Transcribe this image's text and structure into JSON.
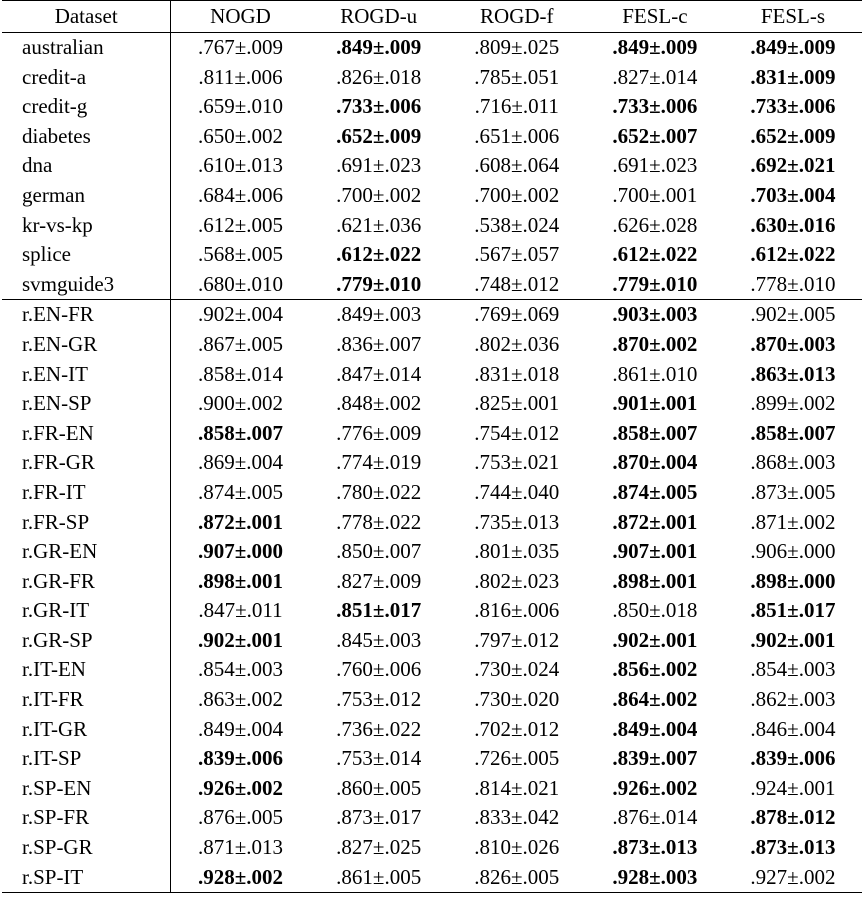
{
  "table": {
    "headers": [
      "Dataset",
      "NOGD",
      "ROGD-u",
      "ROGD-f",
      "FESL-c",
      "FESL-s"
    ],
    "groups": [
      {
        "rows": [
          {
            "dataset": "australian",
            "cells": [
              {
                "v": ".767±.009",
                "b": false
              },
              {
                "v": ".849±.009",
                "b": true
              },
              {
                "v": ".809±.025",
                "b": false
              },
              {
                "v": ".849±.009",
                "b": true
              },
              {
                "v": ".849±.009",
                "b": true
              }
            ]
          },
          {
            "dataset": "credit-a",
            "cells": [
              {
                "v": ".811±.006",
                "b": false
              },
              {
                "v": ".826±.018",
                "b": false
              },
              {
                "v": ".785±.051",
                "b": false
              },
              {
                "v": ".827±.014",
                "b": false
              },
              {
                "v": ".831±.009",
                "b": true
              }
            ]
          },
          {
            "dataset": "credit-g",
            "cells": [
              {
                "v": ".659±.010",
                "b": false
              },
              {
                "v": ".733±.006",
                "b": true
              },
              {
                "v": ".716±.011",
                "b": false
              },
              {
                "v": ".733±.006",
                "b": true
              },
              {
                "v": ".733±.006",
                "b": true
              }
            ]
          },
          {
            "dataset": "diabetes",
            "cells": [
              {
                "v": ".650±.002",
                "b": false
              },
              {
                "v": ".652±.009",
                "b": true
              },
              {
                "v": ".651±.006",
                "b": false
              },
              {
                "v": ".652±.007",
                "b": true
              },
              {
                "v": ".652±.009",
                "b": true
              }
            ]
          },
          {
            "dataset": "dna",
            "cells": [
              {
                "v": ".610±.013",
                "b": false
              },
              {
                "v": ".691±.023",
                "b": false
              },
              {
                "v": ".608±.064",
                "b": false
              },
              {
                "v": ".691±.023",
                "b": false
              },
              {
                "v": ".692±.021",
                "b": true
              }
            ]
          },
          {
            "dataset": "german",
            "cells": [
              {
                "v": ".684±.006",
                "b": false
              },
              {
                "v": ".700±.002",
                "b": false
              },
              {
                "v": ".700±.002",
                "b": false
              },
              {
                "v": ".700±.001",
                "b": false
              },
              {
                "v": ".703±.004",
                "b": true
              }
            ]
          },
          {
            "dataset": "kr-vs-kp",
            "cells": [
              {
                "v": ".612±.005",
                "b": false
              },
              {
                "v": ".621±.036",
                "b": false
              },
              {
                "v": ".538±.024",
                "b": false
              },
              {
                "v": ".626±.028",
                "b": false
              },
              {
                "v": ".630±.016",
                "b": true
              }
            ]
          },
          {
            "dataset": "splice",
            "cells": [
              {
                "v": ".568±.005",
                "b": false
              },
              {
                "v": ".612±.022",
                "b": true
              },
              {
                "v": ".567±.057",
                "b": false
              },
              {
                "v": ".612±.022",
                "b": true
              },
              {
                "v": ".612±.022",
                "b": true
              }
            ]
          },
          {
            "dataset": "svmguide3",
            "cells": [
              {
                "v": ".680±.010",
                "b": false
              },
              {
                "v": ".779±.010",
                "b": true
              },
              {
                "v": ".748±.012",
                "b": false
              },
              {
                "v": ".779±.010",
                "b": true
              },
              {
                "v": ".778±.010",
                "b": false
              }
            ]
          }
        ]
      },
      {
        "rows": [
          {
            "dataset": "r.EN-FR",
            "cells": [
              {
                "v": ".902±.004",
                "b": false
              },
              {
                "v": ".849±.003",
                "b": false
              },
              {
                "v": ".769±.069",
                "b": false
              },
              {
                "v": ".903±.003",
                "b": true
              },
              {
                "v": ".902±.005",
                "b": false
              }
            ]
          },
          {
            "dataset": "r.EN-GR",
            "cells": [
              {
                "v": ".867±.005",
                "b": false
              },
              {
                "v": ".836±.007",
                "b": false
              },
              {
                "v": ".802±.036",
                "b": false
              },
              {
                "v": ".870±.002",
                "b": true
              },
              {
                "v": ".870±.003",
                "b": true
              }
            ]
          },
          {
            "dataset": "r.EN-IT",
            "cells": [
              {
                "v": ".858±.014",
                "b": false
              },
              {
                "v": ".847±.014",
                "b": false
              },
              {
                "v": ".831±.018",
                "b": false
              },
              {
                "v": ".861±.010",
                "b": false
              },
              {
                "v": ".863±.013",
                "b": true
              }
            ]
          },
          {
            "dataset": "r.EN-SP",
            "cells": [
              {
                "v": ".900±.002",
                "b": false
              },
              {
                "v": ".848±.002",
                "b": false
              },
              {
                "v": ".825±.001",
                "b": false
              },
              {
                "v": ".901±.001",
                "b": true
              },
              {
                "v": ".899±.002",
                "b": false
              }
            ]
          },
          {
            "dataset": "r.FR-EN",
            "cells": [
              {
                "v": ".858±.007",
                "b": true
              },
              {
                "v": ".776±.009",
                "b": false
              },
              {
                "v": ".754±.012",
                "b": false
              },
              {
                "v": ".858±.007",
                "b": true
              },
              {
                "v": ".858±.007",
                "b": true
              }
            ]
          },
          {
            "dataset": "r.FR-GR",
            "cells": [
              {
                "v": ".869±.004",
                "b": false
              },
              {
                "v": ".774±.019",
                "b": false
              },
              {
                "v": ".753±.021",
                "b": false
              },
              {
                "v": ".870±.004",
                "b": true
              },
              {
                "v": ".868±.003",
                "b": false
              }
            ]
          },
          {
            "dataset": "r.FR-IT",
            "cells": [
              {
                "v": ".874±.005",
                "b": false
              },
              {
                "v": ".780±.022",
                "b": false
              },
              {
                "v": ".744±.040",
                "b": false
              },
              {
                "v": ".874±.005",
                "b": true
              },
              {
                "v": ".873±.005",
                "b": false
              }
            ]
          },
          {
            "dataset": "r.FR-SP",
            "cells": [
              {
                "v": ".872±.001",
                "b": true
              },
              {
                "v": ".778±.022",
                "b": false
              },
              {
                "v": ".735±.013",
                "b": false
              },
              {
                "v": ".872±.001",
                "b": true
              },
              {
                "v": ".871±.002",
                "b": false
              }
            ]
          },
          {
            "dataset": "r.GR-EN",
            "cells": [
              {
                "v": ".907±.000",
                "b": true
              },
              {
                "v": ".850±.007",
                "b": false
              },
              {
                "v": ".801±.035",
                "b": false
              },
              {
                "v": ".907±.001",
                "b": true
              },
              {
                "v": ".906±.000",
                "b": false
              }
            ]
          },
          {
            "dataset": "r.GR-FR",
            "cells": [
              {
                "v": ".898±.001",
                "b": true
              },
              {
                "v": ".827±.009",
                "b": false
              },
              {
                "v": ".802±.023",
                "b": false
              },
              {
                "v": ".898±.001",
                "b": true
              },
              {
                "v": ".898±.000",
                "b": true
              }
            ]
          },
          {
            "dataset": "r.GR-IT",
            "cells": [
              {
                "v": ".847±.011",
                "b": false
              },
              {
                "v": ".851±.017",
                "b": true
              },
              {
                "v": ".816±.006",
                "b": false
              },
              {
                "v": ".850±.018",
                "b": false
              },
              {
                "v": ".851±.017",
                "b": true
              }
            ]
          },
          {
            "dataset": "r.GR-SP",
            "cells": [
              {
                "v": ".902±.001",
                "b": true
              },
              {
                "v": ".845±.003",
                "b": false
              },
              {
                "v": ".797±.012",
                "b": false
              },
              {
                "v": ".902±.001",
                "b": true
              },
              {
                "v": ".902±.001",
                "b": true
              }
            ]
          },
          {
            "dataset": "r.IT-EN",
            "cells": [
              {
                "v": ".854±.003",
                "b": false
              },
              {
                "v": ".760±.006",
                "b": false
              },
              {
                "v": ".730±.024",
                "b": false
              },
              {
                "v": ".856±.002",
                "b": true
              },
              {
                "v": ".854±.003",
                "b": false
              }
            ]
          },
          {
            "dataset": "r.IT-FR",
            "cells": [
              {
                "v": ".863±.002",
                "b": false
              },
              {
                "v": ".753±.012",
                "b": false
              },
              {
                "v": ".730±.020",
                "b": false
              },
              {
                "v": ".864±.002",
                "b": true
              },
              {
                "v": ".862±.003",
                "b": false
              }
            ]
          },
          {
            "dataset": "r.IT-GR",
            "cells": [
              {
                "v": ".849±.004",
                "b": false
              },
              {
                "v": ".736±.022",
                "b": false
              },
              {
                "v": ".702±.012",
                "b": false
              },
              {
                "v": ".849±.004",
                "b": true
              },
              {
                "v": ".846±.004",
                "b": false
              }
            ]
          },
          {
            "dataset": "r.IT-SP",
            "cells": [
              {
                "v": ".839±.006",
                "b": true
              },
              {
                "v": ".753±.014",
                "b": false
              },
              {
                "v": ".726±.005",
                "b": false
              },
              {
                "v": ".839±.007",
                "b": true
              },
              {
                "v": ".839±.006",
                "b": true
              }
            ]
          },
          {
            "dataset": "r.SP-EN",
            "cells": [
              {
                "v": ".926±.002",
                "b": true
              },
              {
                "v": ".860±.005",
                "b": false
              },
              {
                "v": ".814±.021",
                "b": false
              },
              {
                "v": ".926±.002",
                "b": true
              },
              {
                "v": ".924±.001",
                "b": false
              }
            ]
          },
          {
            "dataset": "r.SP-FR",
            "cells": [
              {
                "v": ".876±.005",
                "b": false
              },
              {
                "v": ".873±.017",
                "b": false
              },
              {
                "v": ".833±.042",
                "b": false
              },
              {
                "v": ".876±.014",
                "b": false
              },
              {
                "v": ".878±.012",
                "b": true
              }
            ]
          },
          {
            "dataset": "r.SP-GR",
            "cells": [
              {
                "v": ".871±.013",
                "b": false
              },
              {
                "v": ".827±.025",
                "b": false
              },
              {
                "v": ".810±.026",
                "b": false
              },
              {
                "v": ".873±.013",
                "b": true
              },
              {
                "v": ".873±.013",
                "b": true
              }
            ]
          },
          {
            "dataset": "r.SP-IT",
            "cells": [
              {
                "v": ".928±.002",
                "b": true
              },
              {
                "v": ".861±.005",
                "b": false
              },
              {
                "v": ".826±.005",
                "b": false
              },
              {
                "v": ".928±.003",
                "b": true
              },
              {
                "v": ".927±.002",
                "b": false
              }
            ]
          }
        ]
      }
    ]
  }
}
